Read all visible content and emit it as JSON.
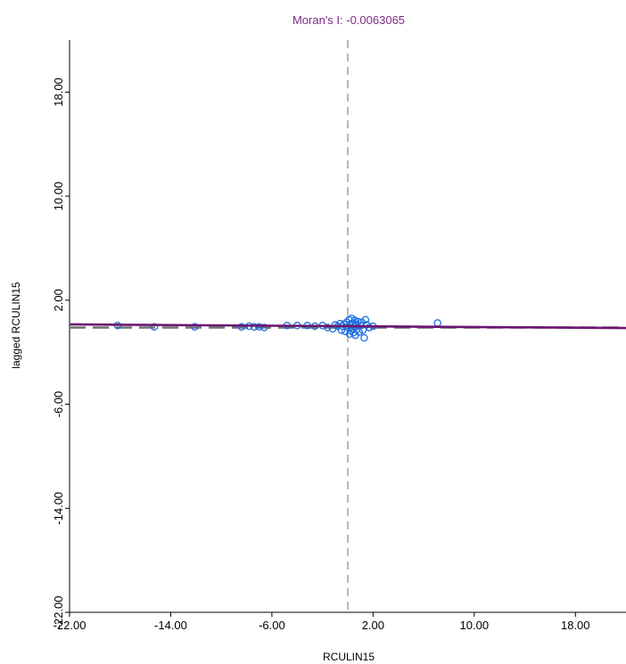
{
  "chart_data": {
    "type": "scatter",
    "title": "Moran's I: -0.0063065",
    "xlabel": "RCULIN15",
    "ylabel": "lagged RCULIN15",
    "xlim": [
      -22,
      22
    ],
    "ylim": [
      -22,
      22
    ],
    "xticks": [
      "-22.00",
      "-14.00",
      "-6.00",
      "2.00",
      "10.00",
      "18.00"
    ],
    "xtick_values": [
      -22,
      -14,
      -6,
      2,
      10,
      18
    ],
    "yticks": [
      "-22.00",
      "-14.00",
      "-6.00",
      "2.00",
      "10.00",
      "18.00"
    ],
    "ytick_values": [
      -22,
      -14,
      -6,
      2,
      10,
      18
    ],
    "mean_x": 0,
    "mean_y": 0,
    "regression": {
      "slope": -0.0063065,
      "intercept": 0
    },
    "grid": false,
    "colors": {
      "title": "#7b2a86",
      "points": "#1f6fe0",
      "regression": "#6b1670",
      "reference": "#707070",
      "axis": "#000000"
    },
    "points": [
      [
        -18.2,
        0.05
      ],
      [
        -15.3,
        -0.05
      ],
      [
        -12.1,
        -0.05
      ],
      [
        -8.4,
        -0.05
      ],
      [
        -7.8,
        0.0
      ],
      [
        -7.4,
        -0.05
      ],
      [
        -7.0,
        -0.05
      ],
      [
        -6.6,
        -0.1
      ],
      [
        -4.8,
        0.05
      ],
      [
        -4.0,
        0.05
      ],
      [
        -3.2,
        0.05
      ],
      [
        -2.6,
        0.0
      ],
      [
        -2.0,
        0.05
      ],
      [
        -1.6,
        -0.1
      ],
      [
        -1.2,
        -0.2
      ],
      [
        -1.0,
        0.1
      ],
      [
        -0.8,
        0.0
      ],
      [
        -0.6,
        0.2
      ],
      [
        -0.5,
        -0.3
      ],
      [
        -0.4,
        0.0
      ],
      [
        -0.3,
        0.15
      ],
      [
        -0.2,
        -0.4
      ],
      [
        -0.1,
        0.3
      ],
      [
        0.0,
        -0.1
      ],
      [
        0.1,
        0.5
      ],
      [
        0.15,
        -0.6
      ],
      [
        0.2,
        0.1
      ],
      [
        0.25,
        -0.35
      ],
      [
        0.3,
        0.6
      ],
      [
        0.35,
        -0.2
      ],
      [
        0.4,
        0.25
      ],
      [
        0.45,
        -0.5
      ],
      [
        0.5,
        0.0
      ],
      [
        0.55,
        0.45
      ],
      [
        0.6,
        -0.7
      ],
      [
        0.65,
        0.15
      ],
      [
        0.7,
        -0.25
      ],
      [
        0.8,
        0.35
      ],
      [
        0.9,
        -0.45
      ],
      [
        1.0,
        0.05
      ],
      [
        1.1,
        0.3
      ],
      [
        1.2,
        -0.3
      ],
      [
        1.3,
        -0.9
      ],
      [
        1.4,
        0.5
      ],
      [
        1.5,
        0.1
      ],
      [
        1.7,
        -0.1
      ],
      [
        2.0,
        0.0
      ],
      [
        7.1,
        0.25
      ]
    ]
  }
}
